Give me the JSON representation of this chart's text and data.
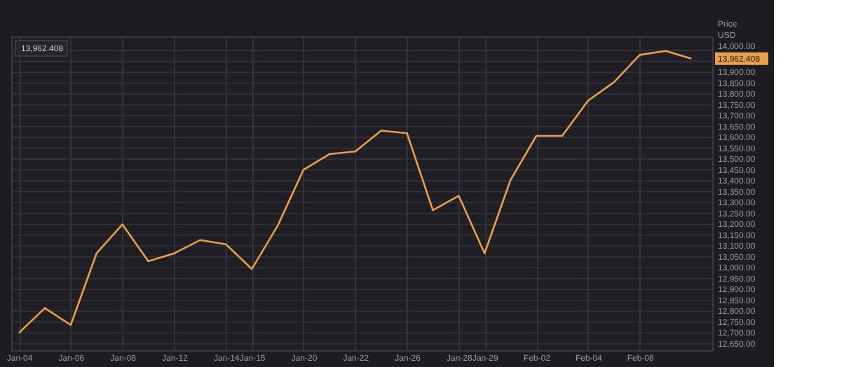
{
  "chart_data": {
    "type": "line",
    "ylabel": "Price USD",
    "categories": [
      "Jan-04",
      null,
      "Jan-06",
      null,
      "Jan-08",
      null,
      "Jan-12",
      null,
      "Jan-14",
      "Jan-15",
      null,
      "Jan-20",
      null,
      "Jan-22",
      null,
      "Jan-26",
      null,
      "Jan-28",
      "Jan-29",
      null,
      "Feb-02",
      null,
      "Feb-04",
      null,
      "Feb-08",
      null,
      null
    ],
    "series": [
      {
        "color": "#e8a04c",
        "values": [
          12700,
          12814,
          12736,
          13066,
          13199,
          13030,
          13066,
          13127,
          13108,
          12994,
          13193,
          13451,
          13523,
          13535,
          13631,
          13619,
          13265,
          13331,
          13066,
          13403,
          13607,
          13607,
          13769,
          13854,
          13980,
          13998,
          13962.408
        ]
      }
    ],
    "ylim": [
      12620,
      14065
    ],
    "yticks": [
      {
        "value": 12650,
        "label": "12,650.00"
      },
      {
        "value": 12700,
        "label": "12,700.00"
      },
      {
        "value": 12750,
        "label": "12,750.00"
      },
      {
        "value": 12800,
        "label": "12,800.00"
      },
      {
        "value": 12850,
        "label": "12,850.00"
      },
      {
        "value": 12900,
        "label": "12,900.00"
      },
      {
        "value": 12950,
        "label": "12,950.00"
      },
      {
        "value": 13000,
        "label": "13,000.00"
      },
      {
        "value": 13050,
        "label": "13,050.00"
      },
      {
        "value": 13100,
        "label": "13,100.00"
      },
      {
        "value": 13150,
        "label": "13,150.00"
      },
      {
        "value": 13200,
        "label": "13,200.00"
      },
      {
        "value": 13250,
        "label": "13,250.00"
      },
      {
        "value": 13300,
        "label": "13,300.00"
      },
      {
        "value": 13350,
        "label": "13,350.00"
      },
      {
        "value": 13400,
        "label": "13,400.00"
      },
      {
        "value": 13450,
        "label": "13,450.00"
      },
      {
        "value": 13500,
        "label": "13,500.00"
      },
      {
        "value": 13550,
        "label": "13,550.00"
      },
      {
        "value": 13600,
        "label": "13,600.00"
      },
      {
        "value": 13650,
        "label": "13,650.00"
      },
      {
        "value": 13700,
        "label": "13,700.00"
      },
      {
        "value": 13750,
        "label": "13,750.00"
      },
      {
        "value": 13800,
        "label": "13,800.00"
      },
      {
        "value": 13850,
        "label": "13,850.00"
      },
      {
        "value": 13900,
        "label": "13,900.00"
      },
      {
        "value": 13950,
        "label": null
      },
      {
        "value": 14000,
        "label": "14,000.00"
      }
    ],
    "annotations": [
      "13,962.408",
      "13,962.408"
    ],
    "grid": true,
    "marker": "none",
    "line_style": "solid"
  }
}
